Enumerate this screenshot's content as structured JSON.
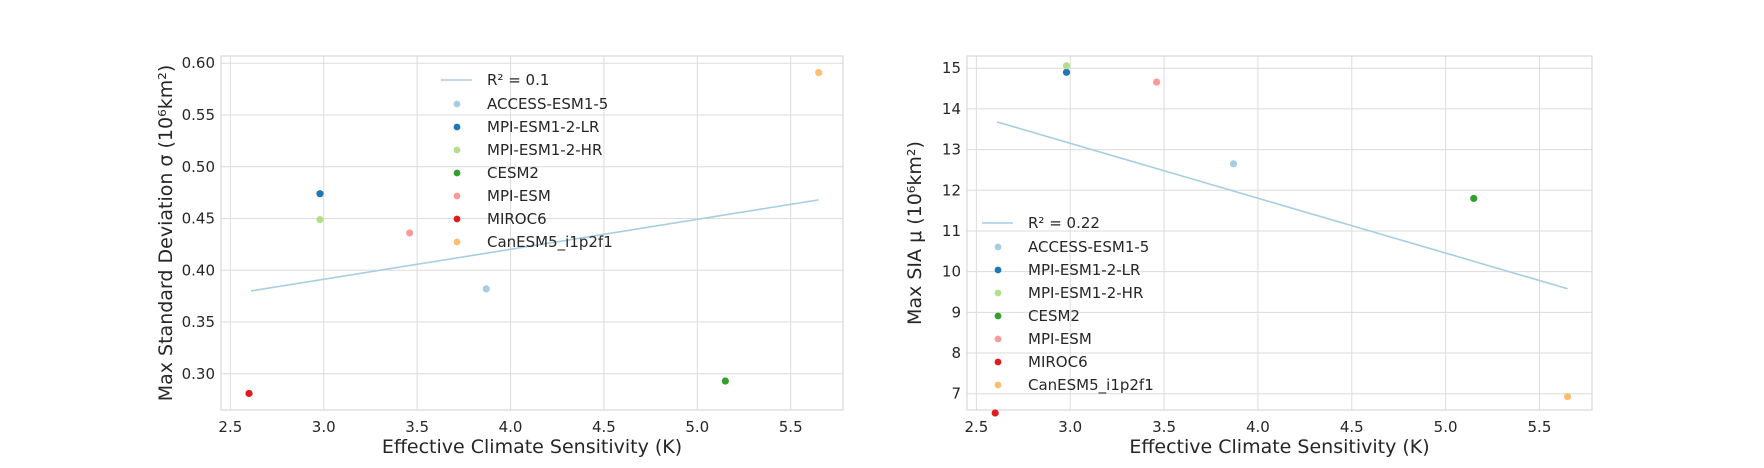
{
  "chart_data": [
    {
      "type": "scatter",
      "xlabel": "Effective Climate Sensitivity (K)",
      "ylabel": "Max Standard Deviation σ (10⁶km²)",
      "xlim": [
        2.45,
        5.78
      ],
      "ylim": [
        0.265,
        0.607
      ],
      "xticks": [
        2.5,
        3.0,
        3.5,
        4.0,
        4.5,
        5.0,
        5.5
      ],
      "yticks": [
        0.3,
        0.35,
        0.4,
        0.45,
        0.5,
        0.55,
        0.6
      ],
      "grid": true,
      "legend_position": "upper-center",
      "fit": {
        "label": "R² = 0.1",
        "x": [
          2.61,
          5.65
        ],
        "y": [
          0.38,
          0.468
        ],
        "color": "#a6cee3"
      },
      "series": [
        {
          "name": "ACCESS-ESM1-5",
          "color": "#a6cee3",
          "x": 3.87,
          "y": 0.382
        },
        {
          "name": "MPI-ESM1-2-LR",
          "color": "#1f78b4",
          "x": 2.98,
          "y": 0.474
        },
        {
          "name": "MPI-ESM1-2-HR",
          "color": "#b2df8a",
          "x": 2.98,
          "y": 0.449
        },
        {
          "name": "CESM2",
          "color": "#33a02c",
          "x": 5.15,
          "y": 0.293
        },
        {
          "name": "MPI-ESM",
          "color": "#fb9a99",
          "x": 3.46,
          "y": 0.436
        },
        {
          "name": "MIROC6",
          "color": "#e31a1c",
          "x": 2.6,
          "y": 0.281
        },
        {
          "name": "CanESM5_i1p2f1",
          "color": "#fdbf6f",
          "x": 5.65,
          "y": 0.591
        }
      ]
    },
    {
      "type": "scatter",
      "xlabel": "Effective Climate Sensitivity (K)",
      "ylabel": "Max SIA μ (10⁶km²)",
      "xlim": [
        2.45,
        5.78
      ],
      "ylim": [
        6.6,
        15.3
      ],
      "xticks": [
        2.5,
        3.0,
        3.5,
        4.0,
        4.5,
        5.0,
        5.5
      ],
      "yticks": [
        7,
        8,
        9,
        10,
        11,
        12,
        13,
        14,
        15
      ],
      "grid": true,
      "legend_position": "lower-left",
      "fit": {
        "label": "R² = 0.22",
        "x": [
          2.61,
          5.65
        ],
        "y": [
          13.68,
          9.58
        ],
        "color": "#a6cee3"
      },
      "series": [
        {
          "name": "ACCESS-ESM1-5",
          "color": "#a6cee3",
          "x": 3.87,
          "y": 12.65
        },
        {
          "name": "MPI-ESM1-2-LR",
          "color": "#1f78b4",
          "x": 2.98,
          "y": 14.9
        },
        {
          "name": "MPI-ESM1-2-HR",
          "color": "#b2df8a",
          "x": 2.98,
          "y": 15.06
        },
        {
          "name": "CESM2",
          "color": "#33a02c",
          "x": 5.15,
          "y": 11.8
        },
        {
          "name": "MPI-ESM",
          "color": "#fb9a99",
          "x": 3.46,
          "y": 14.66
        },
        {
          "name": "MIROC6",
          "color": "#e31a1c",
          "x": 2.6,
          "y": 6.27
        },
        {
          "name": "CanESM5_i1p2f1",
          "color": "#fdbf6f",
          "x": 5.65,
          "y": 6.93
        }
      ]
    }
  ]
}
